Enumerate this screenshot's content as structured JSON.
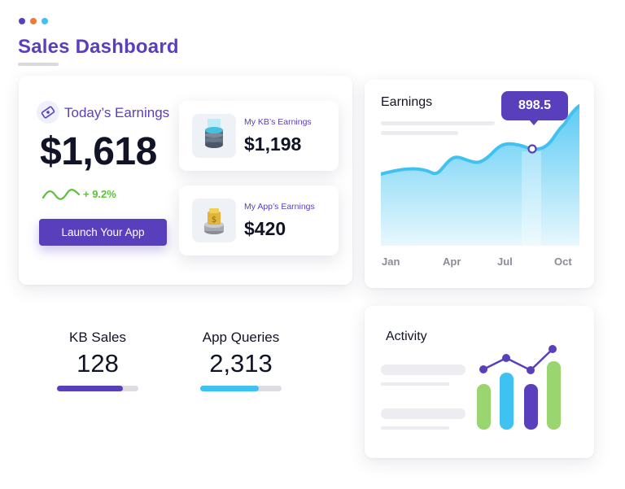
{
  "window": {
    "dots": [
      {
        "name": "dot-purple",
        "color": "#5a3fbd"
      },
      {
        "name": "dot-orange",
        "color": "#f07a3a"
      },
      {
        "name": "dot-blue",
        "color": "#3fc2f2"
      }
    ]
  },
  "header": {
    "title": "Sales Dashboard"
  },
  "todays_earnings": {
    "label": "Today’s Earnings",
    "amount": "$1,618",
    "change": "+ 9.2%",
    "button_label": "Launch Your App",
    "icon": "ticket-icon"
  },
  "sub_cards": [
    {
      "label": "My KB’s Earnings",
      "value": "$1,198",
      "icon": "database-icon"
    },
    {
      "label": "My App’s Earnings",
      "value": "$420",
      "icon": "coin-stack-icon"
    }
  ],
  "earnings_chart": {
    "title": "Earnings",
    "tooltip_value": "898.5",
    "months": [
      "Jan",
      "Apr",
      "Jul",
      "Oct"
    ]
  },
  "stats": [
    {
      "label": "KB Sales",
      "value": "128",
      "progress": 0.81,
      "color": "#5a3fbd"
    },
    {
      "label": "App Queries",
      "value": "2,313",
      "progress": 0.72,
      "color": "#3fc2f2"
    }
  ],
  "activity": {
    "title": "Activity",
    "bar_colors": [
      "#9bd56f",
      "#3fc2f2",
      "#5a3fbd",
      "#9bd56f"
    ],
    "line_color": "#5a3fbd"
  },
  "colors": {
    "accent": "#5a3fbd",
    "positive": "#5cc23a",
    "chart_fill": "#3fc2f2"
  }
}
